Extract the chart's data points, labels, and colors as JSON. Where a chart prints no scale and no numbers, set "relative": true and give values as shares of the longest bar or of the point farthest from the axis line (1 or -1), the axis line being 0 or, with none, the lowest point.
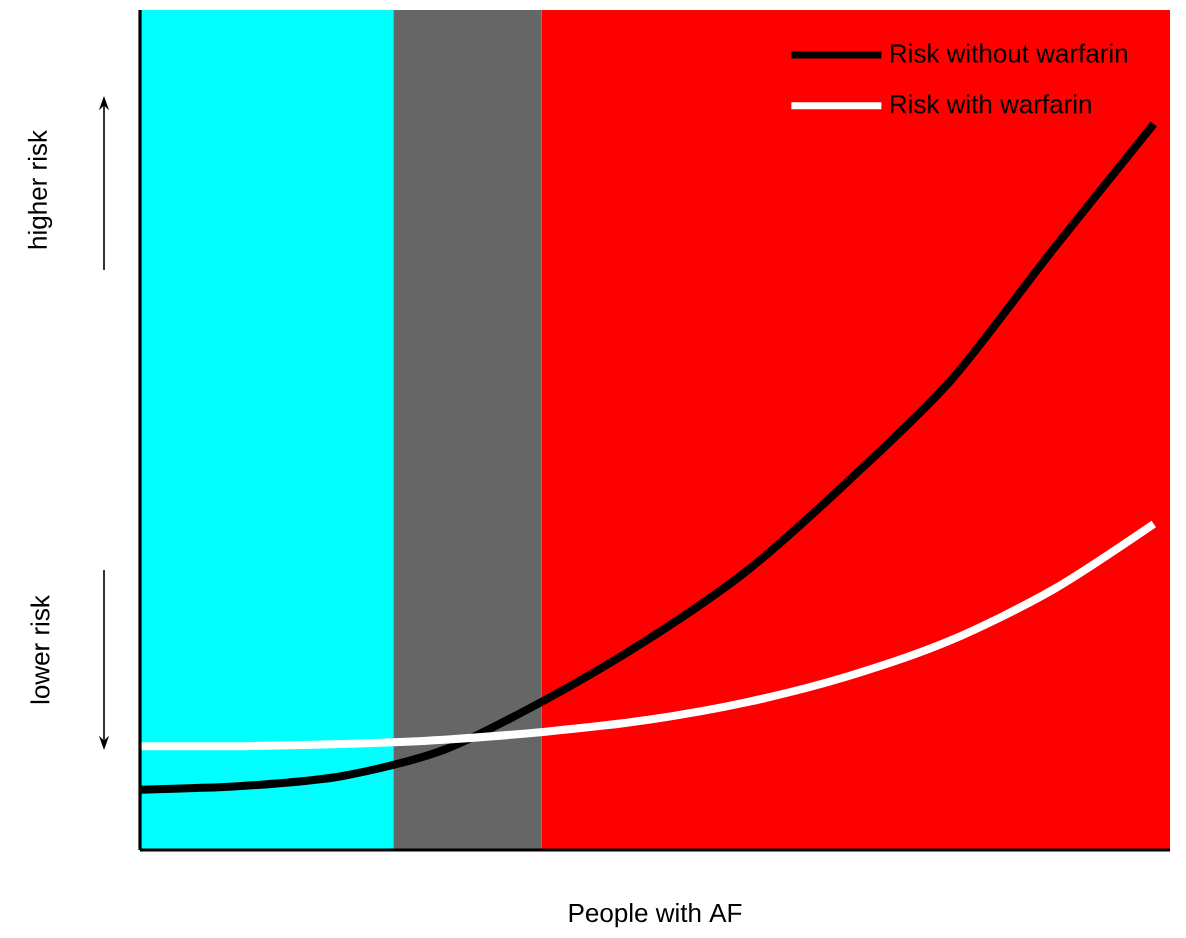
{
  "chart_data": {
    "type": "line",
    "relative": true,
    "xlabel": "People with AF",
    "categories": [
      null,
      null,
      null,
      null,
      null,
      null,
      null,
      null,
      null,
      null,
      null
    ],
    "series": [
      {
        "name": "Risk without warfarin",
        "color": "#000000",
        "values": [
          0.083,
          0.088,
          0.102,
          0.138,
          0.207,
          0.289,
          0.386,
          0.51,
          0.647,
          0.826,
          1.0
        ]
      },
      {
        "name": "Risk with warfarin",
        "color": "#ffffff",
        "values": [
          0.143,
          0.143,
          0.146,
          0.152,
          0.163,
          0.179,
          0.204,
          0.24,
          0.289,
          0.358,
          0.449
        ]
      }
    ],
    "annotations": [
      "higher risk",
      "lower risk"
    ],
    "legend": "top right",
    "marker": "none",
    "line_style": "solid"
  }
}
